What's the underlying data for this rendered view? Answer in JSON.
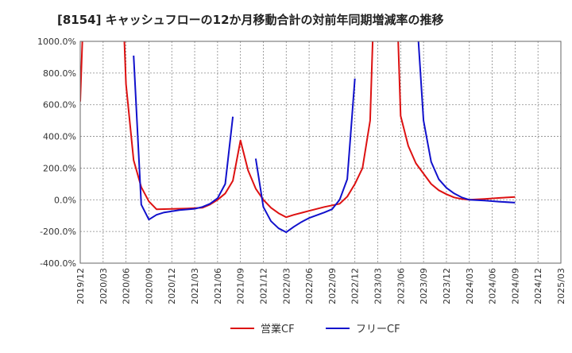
{
  "chart_data": {
    "type": "line",
    "title": "[8154]  キャッシュフローの12か月移動合計の対前年同期増減率の推移",
    "xlabel": "",
    "ylabel": "",
    "ylim": [
      -400,
      1000
    ],
    "y_ticks": [
      -400,
      -200,
      0,
      200,
      400,
      600,
      800,
      1000
    ],
    "y_tick_labels": [
      "-400.0%",
      "-200.0%",
      "0.0%",
      "200.0%",
      "400.0%",
      "600.0%",
      "800.0%",
      "1000.0%"
    ],
    "x_tick_labels": [
      "2019/12",
      "2020/03",
      "2020/06",
      "2020/09",
      "2020/12",
      "2021/03",
      "2021/06",
      "2021/09",
      "2021/12",
      "2022/03",
      "2022/06",
      "2022/09",
      "2022/12",
      "2023/03",
      "2023/06",
      "2023/09",
      "2023/12",
      "2024/03",
      "2024/06",
      "2024/09",
      "2024/12",
      "2025/03"
    ],
    "x_start": "2019/12",
    "x_end": "2025/03",
    "grid": true,
    "legend_position": "bottom",
    "series": [
      {
        "name": "営業CF",
        "color": "#dd1111",
        "points": [
          [
            "2019/12",
            620
          ],
          [
            "2020/01",
            2000
          ],
          [
            "2020/05",
            2000
          ],
          [
            "2020/06",
            730
          ],
          [
            "2020/07",
            250
          ],
          [
            "2020/08",
            80
          ],
          [
            "2020/09",
            -10
          ],
          [
            "2020/10",
            -60
          ],
          [
            "2020/12",
            -58
          ],
          [
            "2021/02",
            -55
          ],
          [
            "2021/04",
            -50
          ],
          [
            "2021/05",
            -30
          ],
          [
            "2021/06",
            0
          ],
          [
            "2021/07",
            40
          ],
          [
            "2021/08",
            120
          ],
          [
            "2021/09",
            375
          ],
          [
            "2021/10",
            185
          ],
          [
            "2021/11",
            70
          ],
          [
            "2021/12",
            0
          ],
          [
            "2022/01",
            -50
          ],
          [
            "2022/02",
            -85
          ],
          [
            "2022/03",
            -110
          ],
          [
            "2022/04",
            -95
          ],
          [
            "2022/06",
            -70
          ],
          [
            "2022/08",
            -45
          ],
          [
            "2022/10",
            -25
          ],
          [
            "2022/11",
            20
          ],
          [
            "2022/12",
            100
          ],
          [
            "2023/01",
            200
          ],
          [
            "2023/02",
            500
          ],
          [
            "2023/03",
            2000
          ],
          [
            "2023/05",
            2000
          ],
          [
            "2023/06",
            530
          ],
          [
            "2023/07",
            340
          ],
          [
            "2023/08",
            230
          ],
          [
            "2023/09",
            165
          ],
          [
            "2023/10",
            100
          ],
          [
            "2023/11",
            60
          ],
          [
            "2023/12",
            35
          ],
          [
            "2024/01",
            15
          ],
          [
            "2024/02",
            5
          ],
          [
            "2024/03",
            0
          ],
          [
            "2024/05",
            5
          ],
          [
            "2024/07",
            12
          ],
          [
            "2024/09",
            18
          ]
        ]
      },
      {
        "name": "フリーCF",
        "color": "#1111cc",
        "segments": [
          [
            [
              "2020/07",
              910
            ],
            [
              "2020/08",
              -30
            ],
            [
              "2020/09",
              -125
            ],
            [
              "2020/10",
              -95
            ],
            [
              "2020/11",
              -80
            ],
            [
              "2021/01",
              -65
            ],
            [
              "2021/03",
              -57
            ],
            [
              "2021/04",
              -45
            ],
            [
              "2021/05",
              -25
            ],
            [
              "2021/06",
              10
            ],
            [
              "2021/07",
              100
            ],
            [
              "2021/08",
              525
            ]
          ],
          [
            [
              "2021/11",
              260
            ],
            [
              "2021/12",
              -45
            ],
            [
              "2022/01",
              -135
            ],
            [
              "2022/02",
              -180
            ],
            [
              "2022/03",
              -205
            ],
            [
              "2022/04",
              -170
            ],
            [
              "2022/05",
              -140
            ],
            [
              "2022/06",
              -115
            ],
            [
              "2022/08",
              -80
            ],
            [
              "2022/09",
              -60
            ],
            [
              "2022/10",
              0
            ],
            [
              "2022/11",
              130
            ],
            [
              "2022/12",
              765
            ]
          ],
          [
            [
              "2023/07",
              2000
            ],
            [
              "2023/09",
              500
            ],
            [
              "2023/10",
              240
            ],
            [
              "2023/11",
              130
            ],
            [
              "2023/12",
              75
            ],
            [
              "2024/01",
              40
            ],
            [
              "2024/02",
              15
            ],
            [
              "2024/03",
              0
            ],
            [
              "2024/05",
              -5
            ],
            [
              "2024/07",
              -12
            ],
            [
              "2024/09",
              -18
            ]
          ]
        ]
      }
    ]
  }
}
